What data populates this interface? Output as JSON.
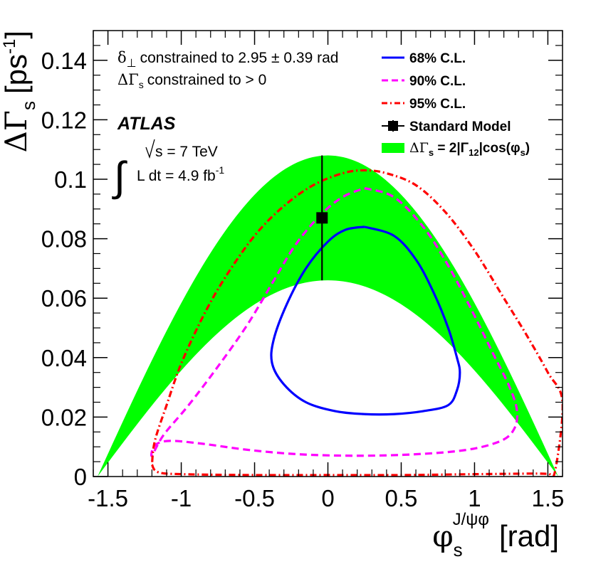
{
  "chart_data": {
    "type": "contour",
    "xlim": [
      -1.6,
      1.6
    ],
    "ylim": [
      0,
      0.15
    ],
    "x_ticks": [
      -1.5,
      -1,
      -0.5,
      0,
      0.5,
      1,
      1.5
    ],
    "x_tick_labels": [
      "-1.5",
      "-1",
      "-0.5",
      "0",
      "0.5",
      "1",
      "1.5"
    ],
    "y_ticks": [
      0,
      0.02,
      0.04,
      0.06,
      0.08,
      0.1,
      0.12,
      0.14
    ],
    "y_tick_labels": [
      "0",
      "0.02",
      "0.04",
      "0.06",
      "0.08",
      "0.1",
      "0.12",
      "0.14"
    ],
    "xlabel": {
      "main": "φ",
      "sub": "s",
      "sup": "J/ψφ",
      "unit": "[rad]"
    },
    "ylabel": {
      "main": "ΔΓ",
      "sub": "s",
      "unit_pre": "[ps",
      "unit_sup": "-1",
      "unit_post": "]"
    },
    "annotations": {
      "constraint_1_symbol": "δ",
      "constraint_1_sub": "⊥",
      "constraint_1_text": "constrained to 2.95 ± 0.39 rad",
      "constraint_2_symbol": "ΔΓ",
      "constraint_2_sub": "s",
      "constraint_2_text": "constrained to > 0",
      "experiment": "ATLAS",
      "integral_symbol": "∫",
      "energy": "s = 7 TeV",
      "lumi_pre": "L dt = 4.9 fb",
      "lumi_sup": "-1"
    },
    "legend": {
      "position": "top-right",
      "entries": [
        {
          "label": "68% C.L.",
          "style": "solid",
          "color": "#0000ff"
        },
        {
          "label": "90% C.L.",
          "style": "dashed",
          "color": "#ff00ff"
        },
        {
          "label": "95% C.L.",
          "style": "dash-dot",
          "color": "#ff0000"
        },
        {
          "label": "Standard Model",
          "style": "marker",
          "color": "#000000"
        },
        {
          "label_pre": "ΔΓ",
          "label_sub": "s",
          "label_mid": " = 2|Γ",
          "label_sub2": "12",
          "label_post": "|cos(φ",
          "label_sub3": "s",
          "label_end": ")",
          "style": "band",
          "color": "#00ff00"
        }
      ]
    },
    "band": {
      "name": "ΔΓs = 2|Γ12|cos(φs)",
      "color": "#00ff00",
      "upper_amplitude": 0.108,
      "lower_amplitude": 0.066
    },
    "standard_model": {
      "x": -0.04,
      "y": 0.087,
      "y_err_low": 0.066,
      "y_err_high": 0.108,
      "color": "#000000"
    },
    "contours": [
      {
        "name": "68% C.L.",
        "color": "#0000ff",
        "style": "solid",
        "points": [
          [
            0.25,
            0.084
          ],
          [
            0.45,
            0.081
          ],
          [
            0.6,
            0.073
          ],
          [
            0.72,
            0.062
          ],
          [
            0.82,
            0.05
          ],
          [
            0.88,
            0.04
          ],
          [
            0.9,
            0.035
          ],
          [
            0.88,
            0.029
          ],
          [
            0.82,
            0.024
          ],
          [
            0.65,
            0.022
          ],
          [
            0.45,
            0.021
          ],
          [
            0.25,
            0.021
          ],
          [
            0.05,
            0.022
          ],
          [
            -0.15,
            0.025
          ],
          [
            -0.3,
            0.031
          ],
          [
            -0.38,
            0.038
          ],
          [
            -0.37,
            0.046
          ],
          [
            -0.28,
            0.058
          ],
          [
            -0.15,
            0.07
          ],
          [
            0.0,
            0.079
          ],
          [
            0.12,
            0.083
          ],
          [
            0.25,
            0.084
          ]
        ]
      },
      {
        "name": "90% C.L.",
        "color": "#ff00ff",
        "style": "dashed",
        "points": [
          [
            0.25,
            0.097
          ],
          [
            0.45,
            0.094
          ],
          [
            0.65,
            0.084
          ],
          [
            0.82,
            0.071
          ],
          [
            0.98,
            0.056
          ],
          [
            1.12,
            0.042
          ],
          [
            1.24,
            0.03
          ],
          [
            1.29,
            0.022
          ],
          [
            1.27,
            0.016
          ],
          [
            1.18,
            0.012
          ],
          [
            0.95,
            0.009
          ],
          [
            0.6,
            0.0075
          ],
          [
            0.2,
            0.007
          ],
          [
            -0.2,
            0.0075
          ],
          [
            -0.55,
            0.009
          ],
          [
            -0.85,
            0.011
          ],
          [
            -1.08,
            0.012
          ],
          [
            -1.18,
            0.0105
          ],
          [
            -1.2,
            0.007
          ],
          [
            -1.12,
            0.014
          ],
          [
            -0.95,
            0.024
          ],
          [
            -0.75,
            0.037
          ],
          [
            -0.55,
            0.051
          ],
          [
            -0.38,
            0.065
          ],
          [
            -0.22,
            0.078
          ],
          [
            -0.05,
            0.088
          ],
          [
            0.1,
            0.094
          ],
          [
            0.25,
            0.097
          ]
        ]
      },
      {
        "name": "95% C.L.",
        "color": "#ff0000",
        "style": "dash-dot",
        "points": [
          [
            -1.2,
            0.004
          ],
          [
            -1.16,
            0.0015
          ],
          [
            -1.0,
            0.0008
          ],
          [
            -0.5,
            0.0005
          ],
          [
            0.0,
            0.0005
          ],
          [
            0.5,
            0.0005
          ],
          [
            1.0,
            0.0008
          ],
          [
            1.4,
            0.001
          ],
          [
            1.5,
            0.001
          ],
          [
            1.55,
            0.002
          ],
          [
            1.6,
            0.025
          ],
          [
            1.5,
            0.035
          ],
          [
            1.35,
            0.048
          ],
          [
            1.2,
            0.06
          ],
          [
            1.0,
            0.076
          ],
          [
            0.8,
            0.089
          ],
          [
            0.6,
            0.098
          ],
          [
            0.4,
            0.102
          ],
          [
            0.25,
            0.103
          ],
          [
            0.1,
            0.102
          ],
          [
            -0.1,
            0.098
          ],
          [
            -0.3,
            0.091
          ],
          [
            -0.5,
            0.081
          ],
          [
            -0.7,
            0.067
          ],
          [
            -0.85,
            0.054
          ],
          [
            -1.0,
            0.038
          ],
          [
            -1.1,
            0.024
          ],
          [
            -1.18,
            0.012
          ],
          [
            -1.2,
            0.004
          ]
        ]
      }
    ]
  }
}
